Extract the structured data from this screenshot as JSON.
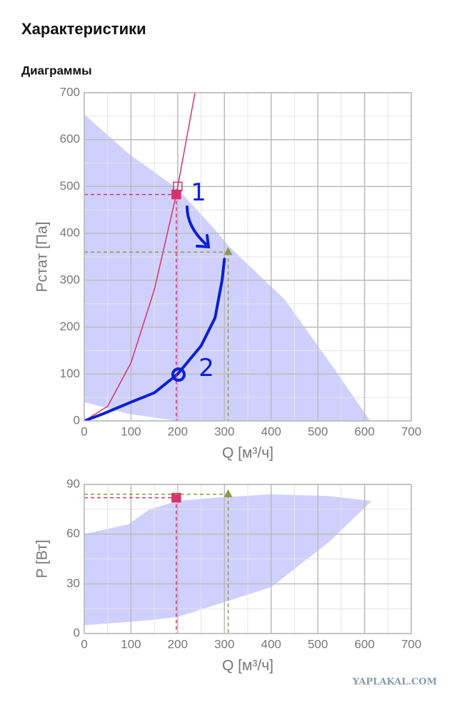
{
  "header": {
    "title": "Характеристики",
    "subtitle": "Диаграммы"
  },
  "watermark": "YAPLAKAL.COM",
  "chart_data": [
    {
      "type": "combo",
      "x_label": "Q [м³/ч]",
      "y_label": "Pстат [Па]",
      "xlim": [
        0,
        700
      ],
      "xticks": [
        0,
        100,
        200,
        300,
        400,
        500,
        600,
        700
      ],
      "ylim": [
        0,
        700
      ],
      "yticks": [
        0,
        100,
        200,
        300,
        400,
        500,
        600,
        700
      ],
      "grid": true,
      "series": [
        {
          "type": "area",
          "color": "#c8c8ff",
          "x": [
            0,
            95,
            200,
            278,
            310,
            430,
            538,
            612
          ],
          "values": [
            654,
            570,
            495,
            410,
            372,
            258,
            107,
            0
          ],
          "lower": [
            40,
            15,
            0,
            0,
            0,
            0,
            0,
            0
          ]
        },
        {
          "type": "line",
          "color": "#d6336c",
          "x": [
            0,
            50,
            100,
            150,
            197,
            237
          ],
          "values": [
            0,
            31,
            124,
            280,
            483,
            700
          ]
        },
        {
          "type": "line",
          "color": "#0a1fd6",
          "width": 4,
          "x": [
            0,
            40,
            100,
            150,
            200,
            250,
            280,
            295,
            300
          ],
          "values": [
            0,
            15,
            40,
            60,
            100,
            160,
            220,
            300,
            345
          ]
        },
        {
          "type": "scatter",
          "marker": "square",
          "filled": true,
          "guides": true,
          "color": "#d6336c",
          "x": [
            197
          ],
          "values": [
            483
          ]
        },
        {
          "type": "scatter",
          "marker": "square",
          "filled": false,
          "guides": false,
          "color": "#d6336c",
          "x": [
            200
          ],
          "values": [
            500
          ]
        },
        {
          "type": "scatter",
          "marker": "triangle",
          "filled": true,
          "guides": true,
          "color": "#8c9a4a",
          "x": [
            308
          ],
          "values": [
            360
          ]
        }
      ],
      "annotations": [
        {
          "text": "1",
          "x": 228,
          "y": 485,
          "color": "#0a1fd6"
        },
        {
          "text": "2",
          "x": 245,
          "y": 110,
          "color": "#0a1fd6"
        }
      ]
    },
    {
      "type": "combo",
      "x_label": "Q [м³/ч]",
      "y_label": "P [Вт]",
      "xlim": [
        0,
        700
      ],
      "xticks": [
        0,
        100,
        200,
        300,
        400,
        500,
        600,
        700
      ],
      "ylim": [
        0,
        90
      ],
      "yticks": [
        0,
        30,
        60,
        90
      ],
      "grid": true,
      "series": [
        {
          "type": "area",
          "color": "#c8c8ff",
          "x": [
            0,
            95,
            140,
            200,
            278,
            400,
            523,
            615
          ],
          "values": [
            60,
            66,
            75,
            80,
            82,
            84,
            83,
            80
          ],
          "lower": [
            5,
            7,
            8,
            10,
            17,
            28,
            55,
            80
          ]
        },
        {
          "type": "scatter",
          "marker": "square",
          "filled": true,
          "guides": true,
          "color": "#d6336c",
          "x": [
            197
          ],
          "values": [
            82
          ]
        },
        {
          "type": "scatter",
          "marker": "triangle",
          "filled": true,
          "guides": true,
          "color": "#8c9a4a",
          "x": [
            308
          ],
          "values": [
            84
          ]
        }
      ],
      "annotations": []
    }
  ]
}
